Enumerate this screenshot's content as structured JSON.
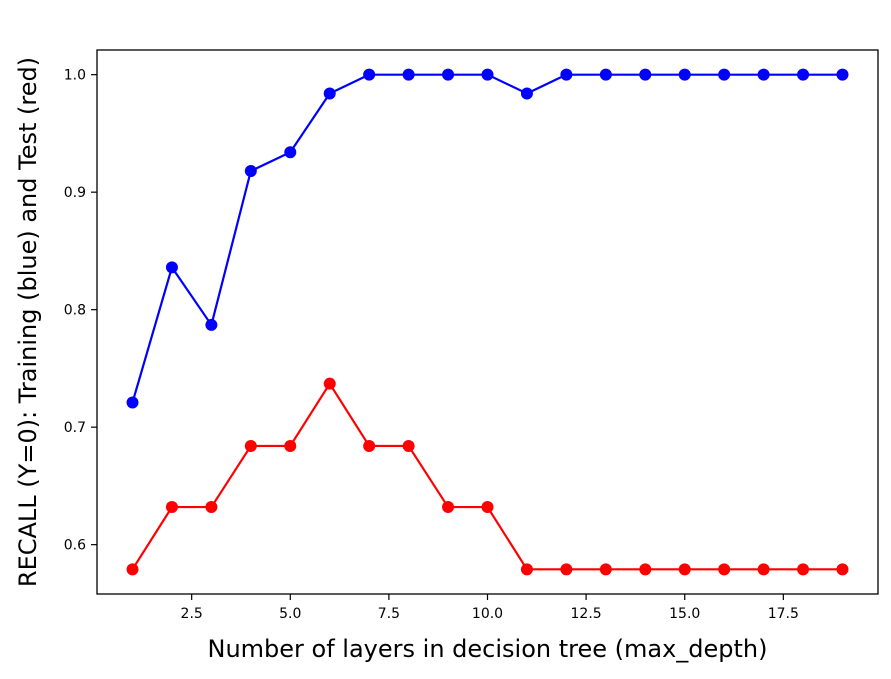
{
  "chart_data": {
    "type": "line",
    "title": "",
    "xlabel": "Number of layers in decision tree (max_depth)",
    "ylabel": "RECALL (Y=0): Training (blue) and Test (red)",
    "x": [
      1,
      2,
      3,
      4,
      5,
      6,
      7,
      8,
      9,
      10,
      11,
      12,
      13,
      14,
      15,
      16,
      17,
      18,
      19
    ],
    "series": [
      {
        "color": "#0000ff",
        "values": [
          0.721,
          0.836,
          0.787,
          0.918,
          0.934,
          0.984,
          1.0,
          1.0,
          1.0,
          1.0,
          0.984,
          1.0,
          1.0,
          1.0,
          1.0,
          1.0,
          1.0,
          1.0,
          1.0
        ]
      },
      {
        "color": "#ff0000",
        "values": [
          0.579,
          0.632,
          0.632,
          0.684,
          0.684,
          0.737,
          0.684,
          0.684,
          0.632,
          0.632,
          0.579,
          0.579,
          0.579,
          0.579,
          0.579,
          0.579,
          0.579,
          0.579,
          0.579
        ]
      }
    ],
    "xlim": [
      0.1,
      19.9
    ],
    "ylim": [
      0.558,
      1.021
    ],
    "xticks": [
      2.5,
      5.0,
      7.5,
      10.0,
      12.5,
      15.0,
      17.5
    ],
    "xtick_labels": [
      "2.5",
      "5.0",
      "7.5",
      "10.0",
      "12.5",
      "15.0",
      "17.5"
    ],
    "yticks": [
      0.6,
      0.7,
      0.8,
      0.9,
      1.0
    ],
    "ytick_labels": [
      "0.6",
      "0.7",
      "0.8",
      "0.9",
      "1.0"
    ],
    "grid": false,
    "legend": "none",
    "marker": "circle"
  }
}
